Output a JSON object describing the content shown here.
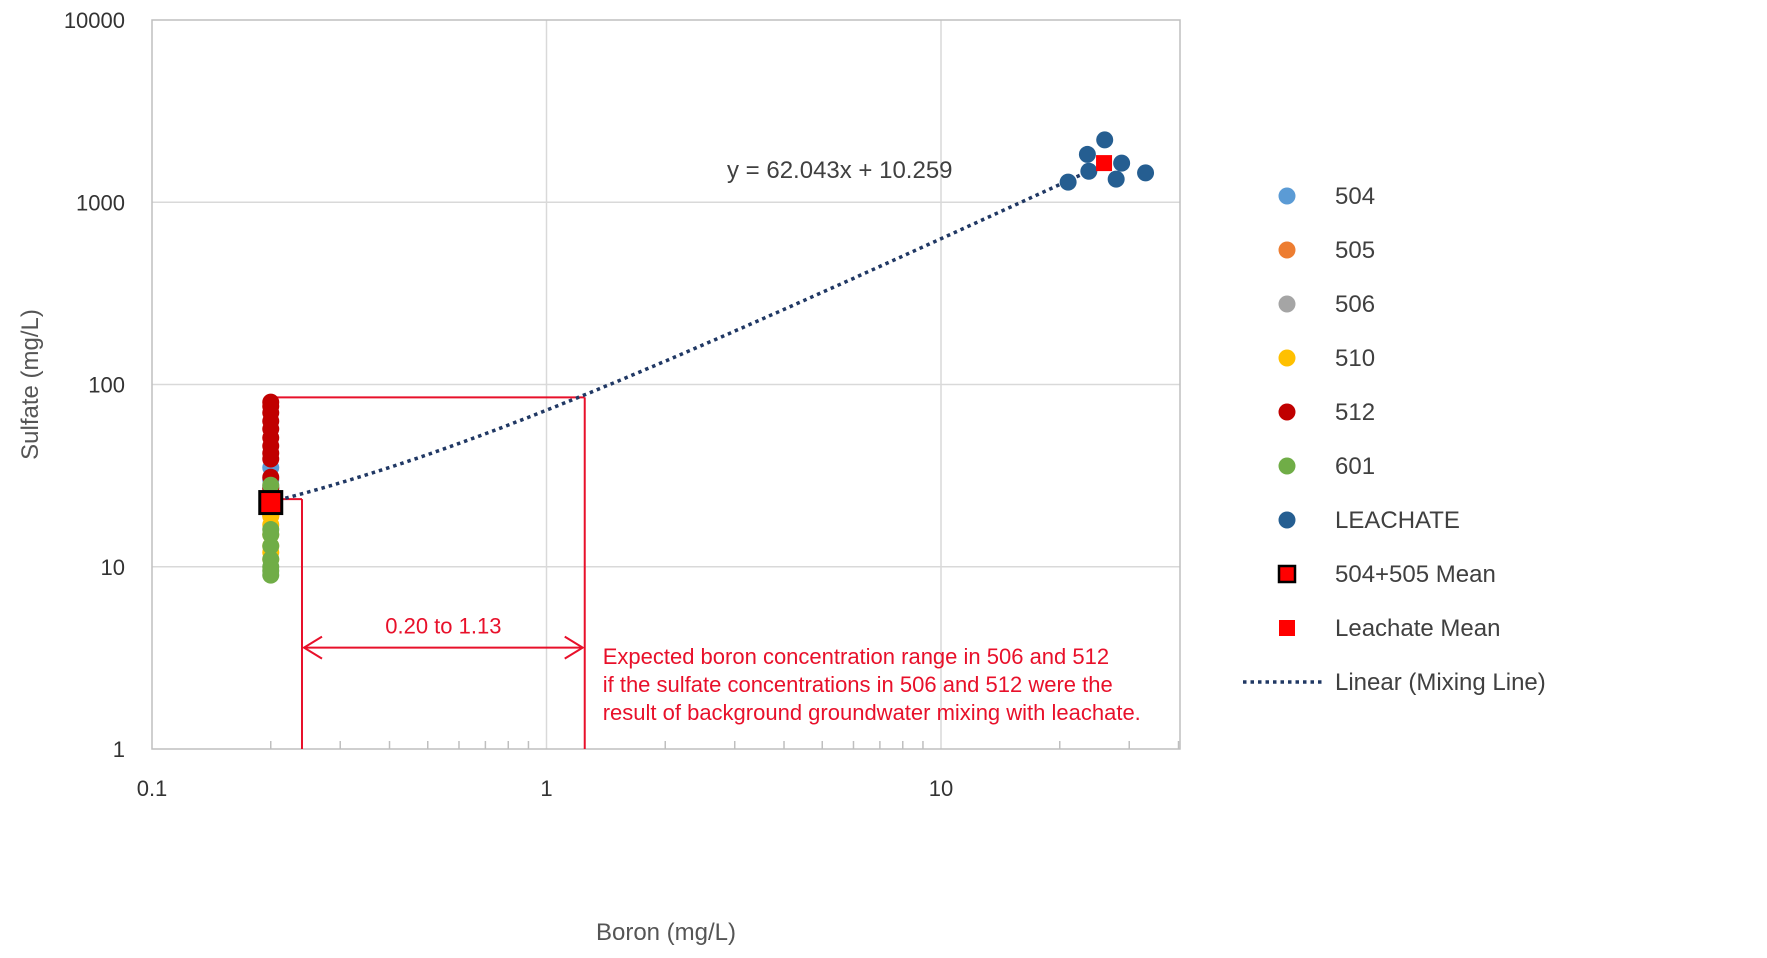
{
  "chart_data": {
    "type": "scatter",
    "title": "",
    "xlabel": "Boron (mg/L)",
    "ylabel": "Sulfate (mg/L)",
    "xscale": "log",
    "yscale": "log",
    "xlim": [
      0.1,
      40
    ],
    "ylim": [
      1,
      10000
    ],
    "x_ticks": [
      0.1,
      1,
      10
    ],
    "x_tick_labels": [
      "0.1",
      "1",
      "10"
    ],
    "y_ticks": [
      1,
      10,
      100,
      1000,
      10000
    ],
    "y_tick_labels": [
      "1",
      "10",
      "100",
      "1000",
      "10000"
    ],
    "grid": true,
    "legend_position": "right",
    "series": [
      {
        "name": "504",
        "color": "#5b9bd5",
        "marker": "circle",
        "points": [
          [
            0.2,
            35
          ],
          [
            0.2,
            30
          ],
          [
            0.2,
            27
          ],
          [
            0.2,
            24
          ],
          [
            0.2,
            21
          ]
        ]
      },
      {
        "name": "505",
        "color": "#ed7d31",
        "marker": "circle",
        "points": [
          [
            0.2,
            25
          ],
          [
            0.2,
            22
          ],
          [
            0.2,
            19
          ]
        ]
      },
      {
        "name": "506",
        "color": "#a5a5a5",
        "marker": "circle",
        "points": [
          [
            0.2,
            28
          ],
          [
            0.2,
            24
          ],
          [
            0.2,
            20
          ]
        ]
      },
      {
        "name": "510",
        "color": "#ffc000",
        "marker": "circle",
        "points": [
          [
            0.2,
            19
          ],
          [
            0.2,
            17
          ],
          [
            0.2,
            15
          ],
          [
            0.2,
            13
          ],
          [
            0.2,
            12
          ],
          [
            0.2,
            11
          ]
        ]
      },
      {
        "name": "512",
        "color": "#c00000",
        "marker": "circle",
        "points": [
          [
            0.2,
            80
          ],
          [
            0.2,
            76
          ],
          [
            0.2,
            70
          ],
          [
            0.2,
            63
          ],
          [
            0.2,
            57
          ],
          [
            0.2,
            51
          ],
          [
            0.2,
            46
          ],
          [
            0.2,
            42
          ],
          [
            0.2,
            39
          ],
          [
            0.2,
            31
          ],
          [
            0.2,
            27
          ]
        ]
      },
      {
        "name": "601",
        "color": "#70ad47",
        "marker": "circle",
        "points": [
          [
            0.2,
            28
          ],
          [
            0.2,
            25
          ],
          [
            0.2,
            16
          ],
          [
            0.2,
            15
          ],
          [
            0.2,
            13
          ],
          [
            0.2,
            11
          ],
          [
            0.2,
            10
          ],
          [
            0.2,
            9.5
          ],
          [
            0.2,
            9
          ]
        ]
      },
      {
        "name": "LEACHATE",
        "color": "#255e91",
        "marker": "circle",
        "points": [
          [
            21,
            1290
          ],
          [
            23.5,
            1830
          ],
          [
            23.7,
            1480
          ],
          [
            26,
            2200
          ],
          [
            27.8,
            1340
          ],
          [
            28.7,
            1640
          ],
          [
            33,
            1450
          ]
        ]
      },
      {
        "name": "504+505 Mean",
        "color": "#ff0000",
        "edge": "#000000",
        "marker": "square-outlined",
        "points": [
          [
            0.2,
            22.5
          ]
        ]
      },
      {
        "name": "Leachate Mean",
        "color": "#ff0000",
        "marker": "square",
        "points": [
          [
            25.9,
            1640
          ]
        ]
      }
    ],
    "trendline": {
      "name": "Linear (Mixing Line)",
      "color": "#203864",
      "style": "dotted",
      "slope": 62.043,
      "intercept": 10.259,
      "x_range": [
        0.2,
        25.9
      ],
      "equation_label": "y = 62.043x + 10.259"
    },
    "annotations": {
      "range_label": "0.20 to 1.13",
      "range_x": [
        0.24,
        1.25
      ],
      "range_sulfate": 85,
      "arrow_y_value": 3.6,
      "mean_guide": {
        "x": 0.24,
        "y": 23.5
      },
      "note_lines": [
        "Expected boron concentration range in 506 and 512",
        "if the sulfate concentrations in 506 and 512 were the",
        "result of background groundwater mixing with leachate."
      ],
      "color": "#e8102a"
    }
  }
}
